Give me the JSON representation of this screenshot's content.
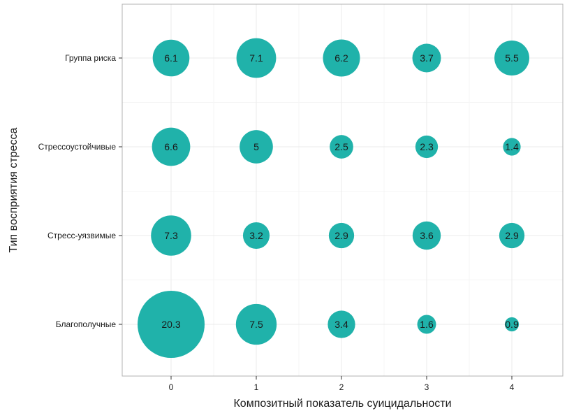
{
  "chart_data": {
    "type": "bubble",
    "title": "",
    "xlabel": "Композитный показатель суицидальности",
    "ylabel": "Тип восприятия стресса",
    "x_categories": [
      "0",
      "1",
      "2",
      "3",
      "4"
    ],
    "y_categories": [
      "Благополучные",
      "Стресс-уязвимые",
      "Стрессоустойчивые",
      "Группа риска"
    ],
    "values": {
      "Группа риска": [
        6.1,
        7.1,
        6.2,
        3.7,
        5.5
      ],
      "Стрессоустойчивые": [
        6.6,
        5,
        2.5,
        2.3,
        1.4
      ],
      "Стресс-уязвимые": [
        7.3,
        3.2,
        2.9,
        3.6,
        2.9
      ],
      "Благополучные": [
        20.3,
        7.5,
        3.4,
        1.6,
        0.9
      ]
    },
    "value_labels": {
      "Группа риска": [
        "6.1",
        "7.1",
        "6.2",
        "3.7",
        "5.5"
      ],
      "Стрессоустойчивые": [
        "6.6",
        "5",
        "2.5",
        "2.3",
        "1.4"
      ],
      "Стресс-уязвимые": [
        "7.3",
        "3.2",
        "2.9",
        "3.6",
        "2.9"
      ],
      "Благополучные": [
        "20.3",
        "7.5",
        "3.4",
        "1.6",
        "0.9"
      ]
    },
    "grid": true,
    "legend": "none"
  },
  "colors": {
    "bubble": "#20b2aa",
    "panel_border": "#b3b3b3",
    "grid_major": "#ebebeb",
    "grid_minor": "#f5f5f5",
    "tick": "#333333"
  }
}
